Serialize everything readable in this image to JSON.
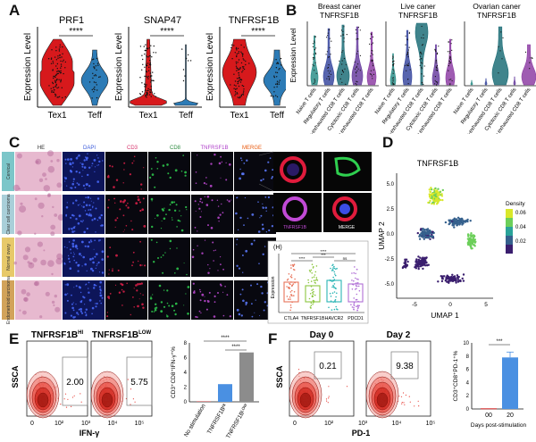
{
  "panels": {
    "A": "A",
    "B": "B",
    "C": "C",
    "D": "D",
    "E": "E",
    "F": "F"
  },
  "panelA": {
    "ylabel": "Expression Level",
    "genes": [
      "PRF1",
      "SNAP47",
      "TNFRSF1B"
    ],
    "groups": [
      "Tex1",
      "Teff"
    ],
    "sig": "****",
    "colors": {
      "tex1": "#d7191c",
      "teff": "#2c7bb6"
    }
  },
  "panelB": {
    "ylabel": "Expression Level",
    "titles": [
      [
        "Breast caner",
        "TNFRSF1B"
      ],
      [
        "Live caner",
        "TNFRSF1B"
      ],
      [
        "Ovarian caner",
        "TNFRSF1B"
      ]
    ],
    "categories": [
      "Naive T cells",
      "Regulatory T cells",
      "Pre-exhausted CD8 T cells",
      "Cytotoxic CD8 T cells",
      "Terminally exhausted CD8 T cells"
    ],
    "colors": [
      "#2d8f8a",
      "#3b4aa0",
      "#1f6f78",
      "#6a3fa0",
      "#8e3fa5"
    ]
  },
  "panelC": {
    "columns": [
      "HE",
      "DAPI",
      "CD3",
      "CD8",
      "TNFRSF1B",
      "MERGE"
    ],
    "column_colors": [
      "#333333",
      "#3b5bdb",
      "#d6336c",
      "#2b8a3e",
      "#ae3ec9",
      "#e8590c"
    ],
    "rows": [
      "Cervical",
      "Clear cell carcinoma",
      "Normal ovary",
      "Endometrioid carcinoma"
    ],
    "row_colors": [
      "#7cc6c9",
      "#a9cfd9",
      "#e7c96a",
      "#d2a35a"
    ],
    "inset_labels": [
      "TNFRSF1B",
      "MERGE"
    ],
    "box": {
      "letter": "(H)",
      "ylabel": "Expression",
      "categories": [
        "CTLA4",
        "TNFRSF1B",
        "HAVCR2",
        "PDCD1"
      ],
      "colors": [
        "#e8735a",
        "#8cc63f",
        "#2bb5b5",
        "#b06fd6"
      ],
      "sigs": [
        "****",
        "***",
        "ns",
        "****"
      ]
    }
  },
  "panelD": {
    "title": "TNFRSF1B",
    "xlabel": "UMAP 1",
    "ylabel": "UMAP 2",
    "xticks": [
      "-5",
      "0",
      "5"
    ],
    "yticks": [
      "5.0",
      "2.5",
      "0.0",
      "-2.5",
      "-5.0"
    ],
    "legend_title": "Density",
    "legend_ticks": [
      "0.06",
      "0.04",
      "0.02"
    ]
  },
  "panelE": {
    "ylabel": "SSCA",
    "xlabel": "IFN-γ",
    "plots": [
      {
        "title": "TNFRSF1B",
        "sup": "HI",
        "value": "2.00"
      },
      {
        "title": "TNFRSF1B",
        "sup": "LOW",
        "value": "5.75"
      }
    ],
    "xticks": [
      "0",
      "10²",
      "10³",
      "10⁴",
      "10⁵"
    ],
    "bar": {
      "ylabel": "CD3⁺CD8⁺IFN-γ⁺%",
      "yticks": [
        "0",
        "2",
        "4",
        "6",
        "8"
      ],
      "ylim": [
        0,
        8
      ],
      "categories": [
        "No stimulation",
        "TNFRSF1Bᴴᴵ",
        "TNFRSF1Bᴸᴼᵂ"
      ],
      "values": [
        0.05,
        2.4,
        6.7
      ],
      "colors": [
        "#d62728",
        "#4a90e2",
        "#8c8c8c"
      ],
      "sigs": [
        "****",
        "****"
      ]
    }
  },
  "panelF": {
    "ylabel": "SSCA",
    "xlabel": "PD-1",
    "plots": [
      {
        "title": "Day 0",
        "value": "0.21"
      },
      {
        "title": "Day 2",
        "value": "9.38"
      }
    ],
    "xticks": [
      "0",
      "10²",
      "10³",
      "10⁴",
      "10⁵"
    ],
    "bar": {
      "ylabel": "CD3⁺CD8⁺PD-1⁺%",
      "yticks": [
        "0",
        "2",
        "4",
        "6",
        "8",
        "10"
      ],
      "ylim": [
        0,
        10
      ],
      "categories": [
        "00",
        "20"
      ],
      "values": [
        0.1,
        7.8
      ],
      "colors": [
        "#d62728",
        "#4a90e2"
      ],
      "sig": "***",
      "xlabel": "Days post-stimulation"
    }
  },
  "chart_data": [
    {
      "type": "bar",
      "title": "",
      "ylabel": "CD3⁺CD8⁺IFN-γ⁺%",
      "categories": [
        "No stimulation",
        "TNFRSF1Bᴴᴵ",
        "TNFRSF1Bᴸᴼᵂ"
      ],
      "values": [
        0.05,
        2.4,
        6.7
      ],
      "ylim": [
        0,
        8
      ]
    },
    {
      "type": "bar",
      "title": "",
      "ylabel": "CD3⁺CD8⁺PD-1⁺%",
      "xlabel": "Days post-stimulation",
      "categories": [
        "00",
        "20"
      ],
      "values": [
        0.1,
        7.8
      ],
      "ylim": [
        0,
        10
      ]
    },
    {
      "type": "scatter",
      "title": "",
      "xlabel": "IFN-γ",
      "ylabel": "SSCA",
      "series": [
        {
          "name": "TNFRSF1Bᴴᴵ",
          "values": [
            2.0
          ]
        },
        {
          "name": "TNFRSF1Bᴸᴼᵂ",
          "values": [
            5.75
          ]
        }
      ]
    },
    {
      "type": "scatter",
      "title": "",
      "xlabel": "PD-1",
      "ylabel": "SSCA",
      "series": [
        {
          "name": "Day 0",
          "values": [
            0.21
          ]
        },
        {
          "name": "Day 2",
          "values": [
            9.38
          ]
        }
      ]
    }
  ]
}
